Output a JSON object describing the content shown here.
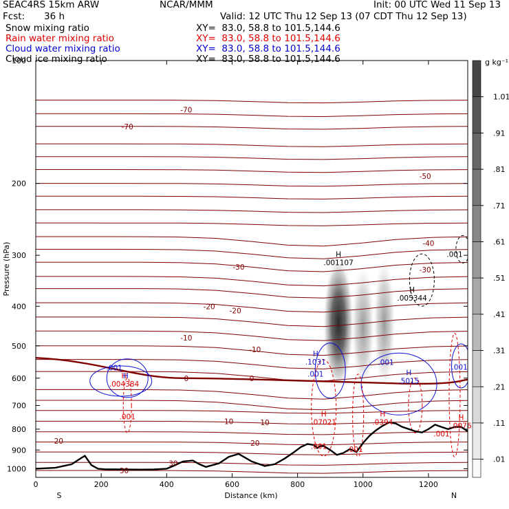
{
  "header": {
    "model": "SEAC4RS 15km ARW",
    "center": "NCAR/MMM",
    "init": "Init: 00 UTC Wed 11 Sep 13",
    "fcst_label": "Fcst:",
    "fcst_value": "36 h",
    "valid": "Valid: 12 UTC Thu 12 Sep 13 (07 CDT Thu 12 Sep 13)",
    "fields": [
      {
        "label": "Snow mixing ratio",
        "xy": "XY=  83.0, 58.8 to 101.5,144.6",
        "color": "#000000"
      },
      {
        "label": "Rain water mixing ratio",
        "xy": "XY=  83.0, 58.8 to 101.5,144.6",
        "color": "#e00000"
      },
      {
        "label": "Cloud water mixing ratio",
        "xy": "XY=  83.0, 58.8 to 101.5,144.6",
        "color": "#0000d0"
      },
      {
        "label": "Cloud ice mixing ratio",
        "xy": "XY=  83.0, 58.8 to 101.5,144.6",
        "color": "#000000"
      }
    ]
  },
  "colorbar": {
    "unit": "g kg⁻¹",
    "labels": [
      "1.01",
      ".91",
      ".81",
      ".71",
      ".61",
      ".51",
      ".41",
      ".31",
      ".21",
      ".11",
      ".01"
    ]
  },
  "chart_data": {
    "type": "cross-section",
    "xlabel": "Distance (km)",
    "ylabel": "Pressure (hPa)",
    "xlim": [
      0,
      1320
    ],
    "ylim": [
      1050,
      100
    ],
    "y_scale": "log",
    "x_ticks": [
      0,
      200,
      400,
      600,
      800,
      1000,
      1200
    ],
    "y_ticks": [
      100,
      200,
      300,
      400,
      500,
      600,
      700,
      800,
      900,
      1000
    ],
    "end_labels": {
      "left": "S",
      "right": "N"
    },
    "temperature_contours_color": "#800000",
    "temperature_labels": [
      {
        "text": "-70",
        "x": 280,
        "p": 145
      },
      {
        "text": "-70",
        "x": 460,
        "p": 132
      },
      {
        "text": "-50",
        "x": 1190,
        "p": 192
      },
      {
        "text": "-40",
        "x": 1200,
        "p": 280
      },
      {
        "text": "-30",
        "x": 620,
        "p": 320
      },
      {
        "text": "-30",
        "x": 1190,
        "p": 325
      },
      {
        "text": "-20",
        "x": 530,
        "p": 400
      },
      {
        "text": "-20",
        "x": 610,
        "p": 410
      },
      {
        "text": "-10",
        "x": 460,
        "p": 478
      },
      {
        "text": "-10",
        "x": 670,
        "p": 510
      },
      {
        "text": "0",
        "x": 460,
        "p": 600
      },
      {
        "text": "0",
        "x": 660,
        "p": 600
      },
      {
        "text": "10",
        "x": 590,
        "p": 765
      },
      {
        "text": "10",
        "x": 700,
        "p": 770
      },
      {
        "text": "20",
        "x": 70,
        "p": 855
      },
      {
        "text": "20",
        "x": 670,
        "p": 865
      },
      {
        "text": "30",
        "x": 420,
        "p": 970
      },
      {
        "text": "30",
        "x": 270,
        "p": 1010
      }
    ],
    "freezing_level_hPa": 600,
    "terrain_profile": {
      "x": [
        0,
        60,
        110,
        140,
        150,
        170,
        190,
        210,
        260,
        320,
        360,
        400,
        420,
        450,
        480,
        500,
        520,
        560,
        590,
        620,
        660,
        700,
        730,
        760,
        790,
        810,
        830,
        850,
        860,
        870,
        880,
        900,
        920,
        940,
        960,
        980,
        1000,
        1020,
        1040,
        1060,
        1080,
        1100,
        1120,
        1140,
        1160,
        1180,
        1200,
        1220,
        1240,
        1260,
        1280,
        1300,
        1320
      ],
      "p": [
        1000,
        995,
        975,
        940,
        930,
        980,
        1000,
        1003,
        1004,
        1005,
        1004,
        1000,
        985,
        960,
        955,
        975,
        990,
        970,
        935,
        920,
        960,
        985,
        975,
        945,
        910,
        885,
        870,
        875,
        890,
        880,
        880,
        900,
        925,
        915,
        895,
        910,
        865,
        830,
        805,
        785,
        770,
        775,
        790,
        800,
        810,
        815,
        800,
        780,
        790,
        800,
        790,
        790,
        810
      ]
    },
    "snow_max": {
      "label": "H",
      "value": ".001107",
      "x": 925,
      "p": 303
    },
    "ice_max": {
      "label": "H",
      "value": ".005344",
      "x": 1150,
      "p": 370
    },
    "ice_label": {
      "text": ".001",
      "x": 1280,
      "p": 298
    },
    "rain_labels": [
      {
        "label": "H",
        "value": ".07021",
        "x": 880,
        "p": 745
      },
      {
        "label": "H",
        "value": ".0394",
        "x": 1060,
        "p": 745
      },
      {
        "label": "H",
        "value": ".0076",
        "x": 1300,
        "p": 760
      },
      {
        "label": "",
        "value": ".001",
        "x": 280,
        "p": 745
      },
      {
        "label": "",
        "value": ".001",
        "x": 865,
        "p": 880
      },
      {
        "label": "",
        "value": ".001",
        "x": 975,
        "p": 895
      },
      {
        "label": "",
        "value": ".001",
        "x": 1240,
        "p": 820
      },
      {
        "label": "H",
        "value": ".004384",
        "x": 270,
        "p": 600
      }
    ],
    "cloud_labels": [
      {
        "label": "",
        "value": ".001",
        "x": 240,
        "p": 565
      },
      {
        "label": "H",
        "value": "",
        "x": 275,
        "p": 600
      },
      {
        "label": "H",
        "value": ".1031",
        "x": 855,
        "p": 530
      },
      {
        "label": "",
        "value": ".001",
        "x": 855,
        "p": 585
      },
      {
        "label": "",
        "value": ".001",
        "x": 1070,
        "p": 548
      },
      {
        "label": "H",
        "value": ".5015",
        "x": 1140,
        "p": 590
      },
      {
        "label": "",
        "value": ".001",
        "x": 1295,
        "p": 563
      }
    ]
  }
}
